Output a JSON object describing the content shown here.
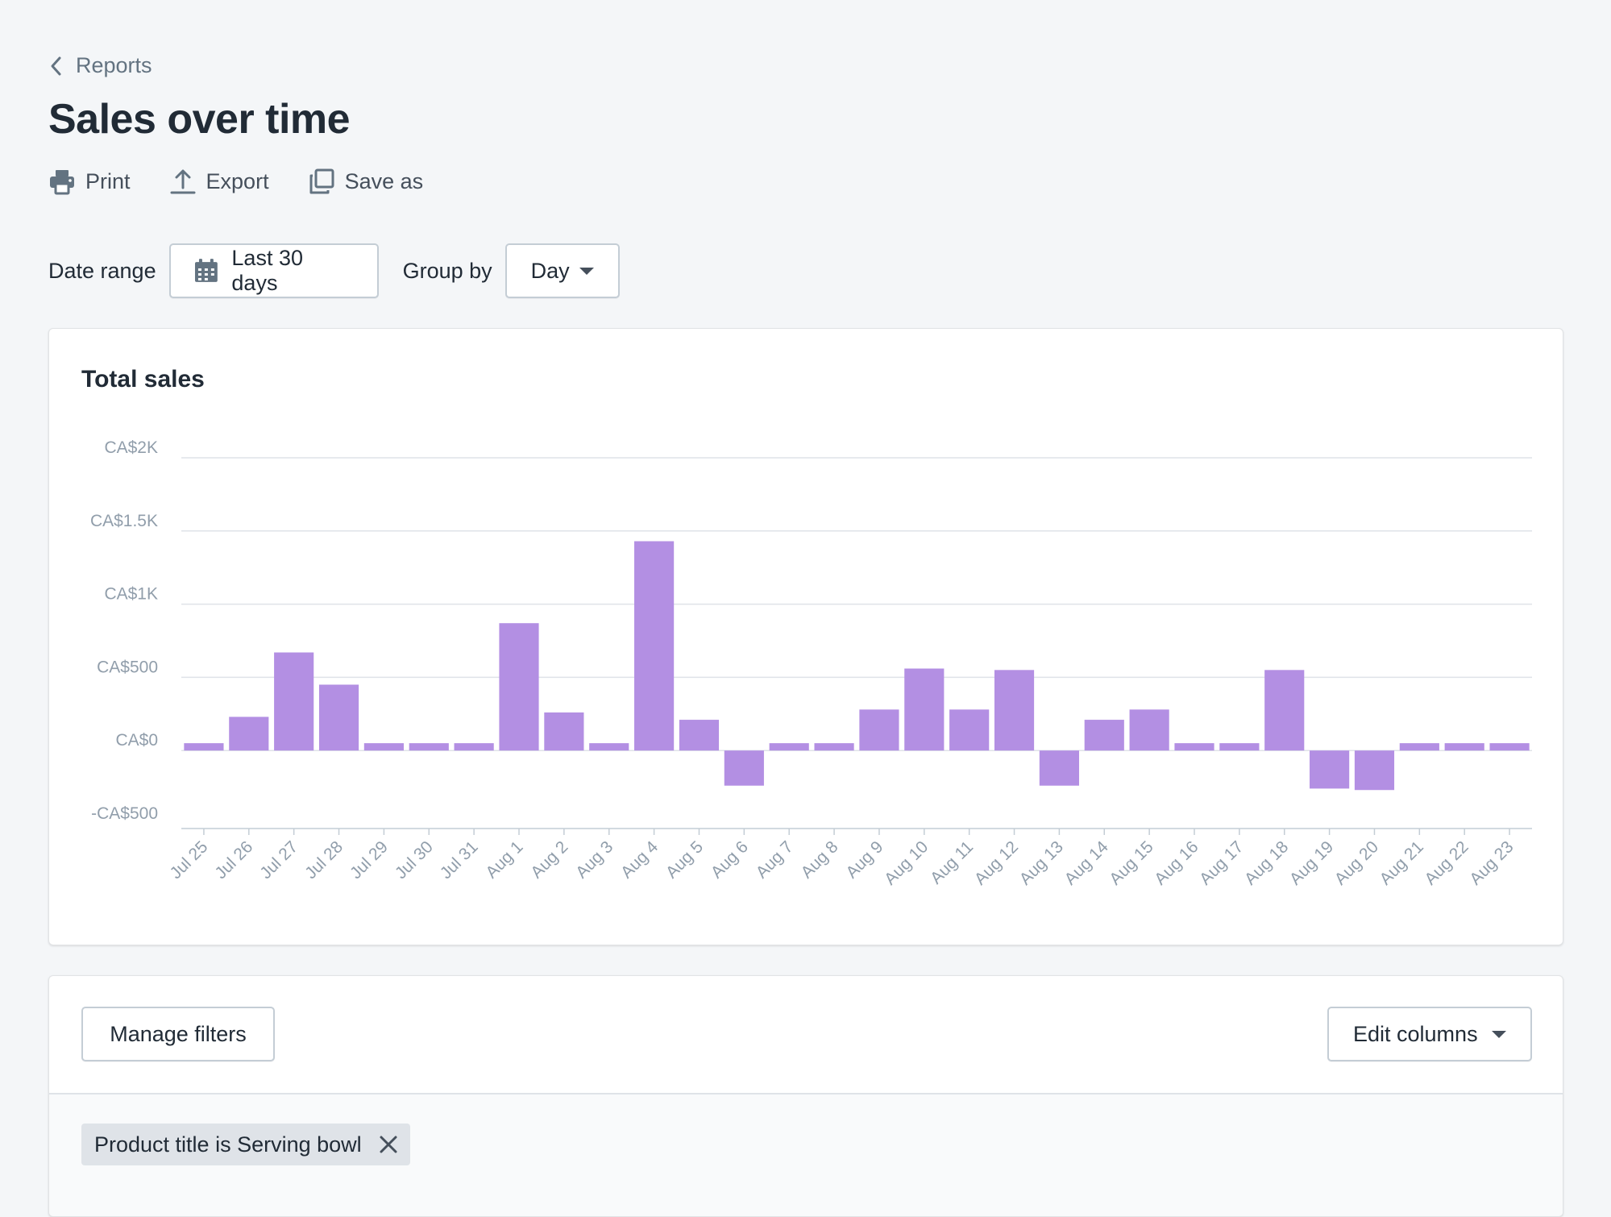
{
  "breadcrumb": {
    "label": "Reports"
  },
  "page": {
    "title": "Sales over time"
  },
  "actions": {
    "print": "Print",
    "export": "Export",
    "save_as": "Save as"
  },
  "controls": {
    "date_range_label": "Date range",
    "date_range_value": "Last 30 days",
    "group_by_label": "Group by",
    "group_by_value": "Day"
  },
  "chart_card": {
    "title": "Total sales"
  },
  "chart_data": {
    "type": "bar",
    "title": "Total sales",
    "xlabel": "",
    "ylabel": "",
    "ylim": [
      -500,
      2000
    ],
    "yticks": [
      {
        "value": 2000,
        "label": "CA$2K"
      },
      {
        "value": 1500,
        "label": "CA$1.5K"
      },
      {
        "value": 1000,
        "label": "CA$1K"
      },
      {
        "value": 500,
        "label": "CA$500"
      },
      {
        "value": 0,
        "label": "CA$0"
      },
      {
        "value": -500,
        "label": "-CA$500"
      }
    ],
    "categories": [
      "Jul 25",
      "Jul 26",
      "Jul 27",
      "Jul 28",
      "Jul 29",
      "Jul 30",
      "Jul 31",
      "Aug 1",
      "Aug 2",
      "Aug 3",
      "Aug 4",
      "Aug 5",
      "Aug 6",
      "Aug 7",
      "Aug 8",
      "Aug 9",
      "Aug 10",
      "Aug 11",
      "Aug 12",
      "Aug 13",
      "Aug 14",
      "Aug 15",
      "Aug 16",
      "Aug 17",
      "Aug 18",
      "Aug 19",
      "Aug 20",
      "Aug 21",
      "Aug 22",
      "Aug 23"
    ],
    "values": [
      50,
      230,
      670,
      450,
      50,
      50,
      50,
      870,
      260,
      50,
      1430,
      210,
      -240,
      50,
      50,
      280,
      560,
      280,
      550,
      -240,
      210,
      280,
      50,
      50,
      550,
      -260,
      -270,
      50,
      50,
      50
    ],
    "grid": true,
    "legend": "none",
    "bar_color": "#b38fe3"
  },
  "table": {
    "manage_filters": "Manage filters",
    "edit_columns": "Edit columns",
    "filter_chip": "Product title is Serving bowl"
  }
}
